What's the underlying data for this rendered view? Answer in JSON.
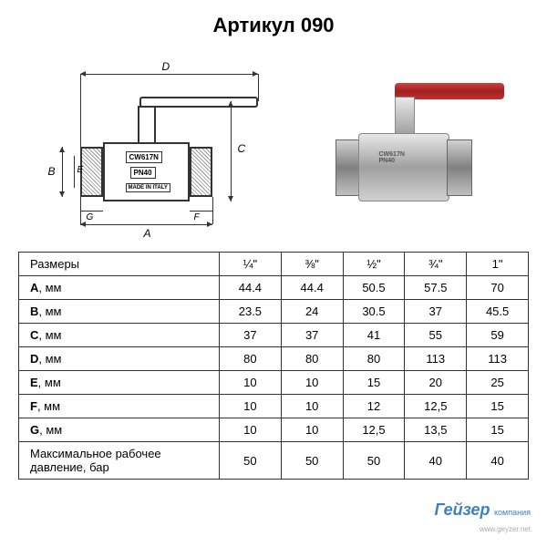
{
  "title": "Артикул 090",
  "diagram": {
    "body_label1": "CW617N",
    "body_label2": "PN40",
    "body_label3": "MADE IN ITALY",
    "dim_a": "A",
    "dim_b": "B",
    "dim_c": "C",
    "dim_d": "D",
    "dim_e": "E",
    "dim_f": "F",
    "dim_g": "G"
  },
  "photo": {
    "handle_color": "#b52020",
    "body_marking1": "CW617N",
    "body_marking2": "PN40"
  },
  "table": {
    "header": {
      "label": "Размеры",
      "sizes": [
        "¼\"",
        "⅜\"",
        "½\"",
        "¾\"",
        "1\""
      ]
    },
    "rows": [
      {
        "label_bold": "A",
        "label_rest": ", мм",
        "values": [
          "44.4",
          "44.4",
          "50.5",
          "57.5",
          "70"
        ]
      },
      {
        "label_bold": "B",
        "label_rest": ", мм",
        "values": [
          "23.5",
          "24",
          "30.5",
          "37",
          "45.5"
        ]
      },
      {
        "label_bold": "C",
        "label_rest": ", мм",
        "values": [
          "37",
          "37",
          "41",
          "55",
          "59"
        ]
      },
      {
        "label_bold": "D",
        "label_rest": ", мм",
        "values": [
          "80",
          "80",
          "80",
          "113",
          "113"
        ]
      },
      {
        "label_bold": "E",
        "label_rest": ", мм",
        "values": [
          "10",
          "10",
          "15",
          "20",
          "25"
        ]
      },
      {
        "label_bold": "F",
        "label_rest": ", мм",
        "values": [
          "10",
          "10",
          "12",
          "12,5",
          "15"
        ]
      },
      {
        "label_bold": "G",
        "label_rest": ", мм",
        "values": [
          "10",
          "10",
          "12,5",
          "13,5",
          "15"
        ]
      },
      {
        "label_bold": "",
        "label_rest": "Максимальное рабочее давление, бар",
        "values": [
          "50",
          "50",
          "50",
          "40",
          "40"
        ]
      }
    ]
  },
  "footer": {
    "brand": "Гейзер",
    "brand_sub": "компания",
    "url": "www.geyzer.net"
  },
  "colors": {
    "text": "#000000",
    "border": "#333333",
    "handle_red": "#b52020",
    "metal_light": "#d0d0d0",
    "metal_dark": "#808080",
    "logo_blue": "#4080c0"
  }
}
